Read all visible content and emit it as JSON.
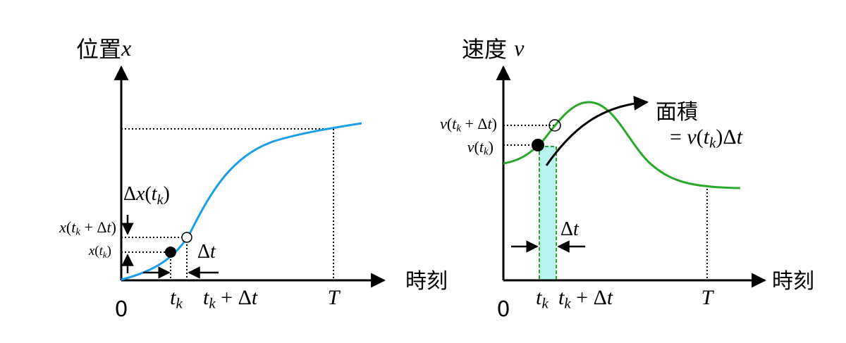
{
  "left": {
    "title": [
      {
        "text": "位置"
      },
      {
        "math": "x"
      }
    ],
    "x_axis": [
      {
        "text": "時刻"
      }
    ],
    "origin": [
      {
        "text": "0"
      }
    ],
    "tk": [
      {
        "math": "t"
      },
      {
        "sub": "k"
      }
    ],
    "tk_dt": [
      {
        "math": "t"
      },
      {
        "sub": "k"
      },
      {
        "upright": " + Δ"
      },
      {
        "math": "t"
      }
    ],
    "T": [
      {
        "math": "T"
      }
    ],
    "dx": [
      {
        "upright": "Δ"
      },
      {
        "math": "x"
      },
      {
        "upright": "("
      },
      {
        "math": "t"
      },
      {
        "sub": "k"
      },
      {
        "upright": ")"
      }
    ],
    "x_next": [
      {
        "math": "x"
      },
      {
        "upright": "("
      },
      {
        "math": "t"
      },
      {
        "sub": "k"
      },
      {
        "upright": " + Δ"
      },
      {
        "math": "t"
      },
      {
        "upright": ")"
      }
    ],
    "x_k": [
      {
        "math": "x"
      },
      {
        "upright": "("
      },
      {
        "math": "t"
      },
      {
        "sub": "k"
      },
      {
        "upright": ")"
      }
    ],
    "dt": [
      {
        "upright": "Δ"
      },
      {
        "math": "t"
      }
    ]
  },
  "right": {
    "title": [
      {
        "text": "速度 "
      },
      {
        "math": "v"
      }
    ],
    "x_axis": [
      {
        "text": "時刻"
      }
    ],
    "origin": [
      {
        "text": "0"
      }
    ],
    "tk": [
      {
        "math": "t"
      },
      {
        "sub": "k"
      }
    ],
    "tk_dt": [
      {
        "math": "t"
      },
      {
        "sub": "k"
      },
      {
        "upright": " + Δ"
      },
      {
        "math": "t"
      }
    ],
    "T": [
      {
        "math": "T"
      }
    ],
    "v_next": [
      {
        "math": "v"
      },
      {
        "upright": "("
      },
      {
        "math": "t"
      },
      {
        "sub": "k"
      },
      {
        "upright": " + Δ"
      },
      {
        "math": "t"
      },
      {
        "upright": ")"
      }
    ],
    "v_k": [
      {
        "math": "v"
      },
      {
        "upright": "("
      },
      {
        "math": "t"
      },
      {
        "sub": "k"
      },
      {
        "upright": ")"
      }
    ],
    "dt": [
      {
        "upright": "Δ"
      },
      {
        "math": "t"
      }
    ],
    "area": [
      {
        "text": "面積"
      }
    ],
    "area_eq": [
      {
        "upright": "= "
      },
      {
        "math": "v"
      },
      {
        "upright": "("
      },
      {
        "math": "t"
      },
      {
        "sub": "k"
      },
      {
        "upright": ")Δ"
      },
      {
        "math": "t"
      }
    ]
  }
}
